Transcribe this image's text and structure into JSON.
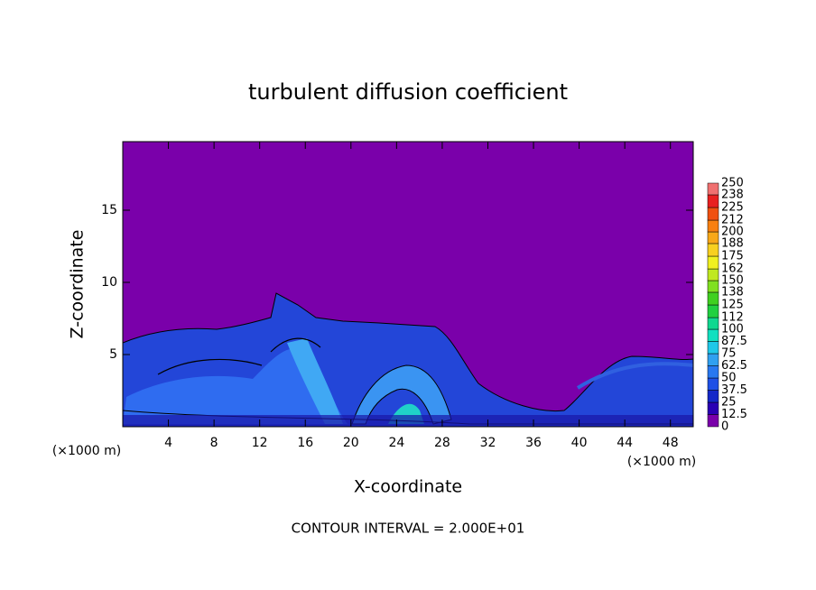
{
  "chart_data": {
    "type": "contour",
    "title": "turbulent diffusion coefficient",
    "x_label": "X-coordinate",
    "y_label": "Z-coordinate",
    "x_unit": "(×1000 m)",
    "footer": "CONTOUR INTERVAL = 2.000E+01",
    "xlim": [
      0,
      50
    ],
    "xticks": [
      4,
      8,
      12,
      16,
      20,
      24,
      28,
      32,
      36,
      40,
      44,
      48
    ],
    "ylim": [
      0,
      19.75
    ],
    "yticks": [
      5,
      10,
      15
    ],
    "background_color": "#7a00aa",
    "colorbar": {
      "levels": [
        0,
        12.5,
        25,
        37.5,
        50,
        62.5,
        75,
        87.5,
        100,
        112,
        125,
        138,
        150,
        162,
        175,
        188,
        200,
        212,
        225,
        238,
        250
      ],
      "colors": [
        "#7a00aa",
        "#2a00b4",
        "#1428c8",
        "#1e50e6",
        "#2878f0",
        "#30a0f0",
        "#20c8e8",
        "#10e0c0",
        "#10d890",
        "#20d040",
        "#40d020",
        "#80e020",
        "#c0e820",
        "#f0f020",
        "#f8d020",
        "#f8a818",
        "#f88010",
        "#f05010",
        "#e82020",
        "#f07070"
      ]
    }
  }
}
